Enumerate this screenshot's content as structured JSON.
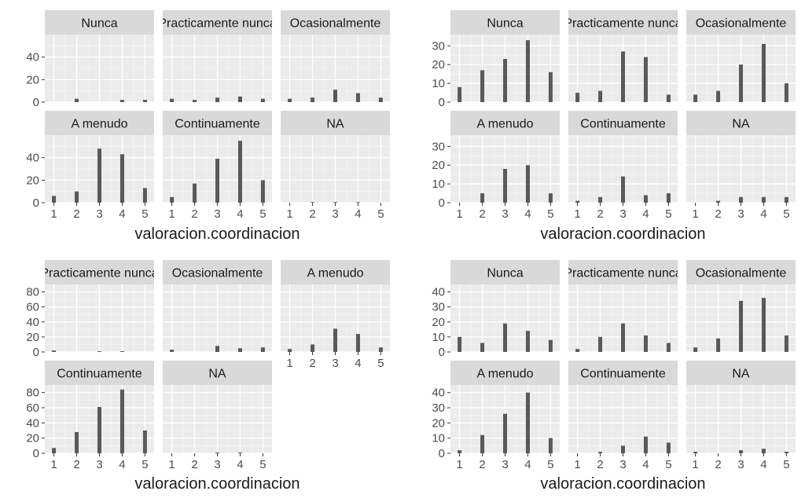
{
  "chart_data": [
    {
      "type": "bar",
      "xlabel": "valoracion.coordinacion",
      "x": [
        1,
        2,
        3,
        4,
        5
      ],
      "ylim": [
        0,
        60
      ],
      "yticks": [
        0,
        20,
        40
      ],
      "facets": [
        {
          "label": "Nunca",
          "values": [
            0,
            3,
            0,
            2,
            2
          ]
        },
        {
          "label": "Practicamente nunca",
          "values": [
            3,
            2,
            4,
            5,
            3
          ]
        },
        {
          "label": "Ocasionalmente",
          "values": [
            3,
            4,
            11,
            8,
            4
          ]
        },
        {
          "label": "A menudo",
          "values": [
            6,
            10,
            48,
            43,
            13
          ]
        },
        {
          "label": "Continuamente",
          "values": [
            5,
            17,
            39,
            55,
            20
          ]
        },
        {
          "label": "NA",
          "values": [
            0,
            0.5,
            0.5,
            0.5,
            0
          ]
        }
      ]
    },
    {
      "type": "bar",
      "xlabel": "valoracion.coordinacion",
      "x": [
        1,
        2,
        3,
        4,
        5
      ],
      "ylim": [
        0,
        36
      ],
      "yticks": [
        0,
        10,
        20,
        30
      ],
      "facets": [
        {
          "label": "Nunca",
          "values": [
            8,
            17,
            23,
            33,
            16
          ]
        },
        {
          "label": "Practicamente nunca",
          "values": [
            5,
            6,
            27,
            24,
            4
          ]
        },
        {
          "label": "Ocasionalmente",
          "values": [
            4,
            6,
            20,
            31,
            10
          ]
        },
        {
          "label": "A menudo",
          "values": [
            0,
            5,
            18,
            20,
            5
          ]
        },
        {
          "label": "Continuamente",
          "values": [
            1,
            3,
            14,
            4,
            5
          ]
        },
        {
          "label": "NA",
          "values": [
            0,
            1,
            3,
            3,
            3
          ]
        }
      ]
    },
    {
      "type": "bar",
      "xlabel": "valoracion.coordinacion",
      "x": [
        1,
        2,
        3,
        4,
        5
      ],
      "ylim": [
        0,
        90
      ],
      "yticks": [
        0,
        20,
        40,
        60,
        80
      ],
      "facets": [
        {
          "label": "Practicamente nunca",
          "values": [
            2,
            0,
            1,
            1,
            0
          ]
        },
        {
          "label": "Ocasionalmente",
          "values": [
            3,
            0,
            8,
            5,
            6
          ]
        },
        {
          "label": "A menudo",
          "values": [
            4,
            10,
            31,
            24,
            6
          ]
        },
        {
          "label": "Continuamente",
          "values": [
            7,
            28,
            61,
            84,
            30
          ]
        },
        {
          "label": "NA",
          "values": [
            0,
            0,
            1,
            1,
            0
          ]
        }
      ]
    },
    {
      "type": "bar",
      "xlabel": "valoracion.coordinacion",
      "x": [
        1,
        2,
        3,
        4,
        5
      ],
      "ylim": [
        0,
        45
      ],
      "yticks": [
        0,
        10,
        20,
        30,
        40
      ],
      "facets": [
        {
          "label": "Nunca",
          "values": [
            10,
            6,
            19,
            14,
            8
          ]
        },
        {
          "label": "Practicamente nunca",
          "values": [
            2,
            10,
            19,
            11,
            6
          ]
        },
        {
          "label": "Ocasionalmente",
          "values": [
            3,
            9,
            34,
            36,
            11
          ]
        },
        {
          "label": "A menudo",
          "values": [
            2,
            12,
            26,
            40,
            10
          ]
        },
        {
          "label": "Continuamente",
          "values": [
            0,
            1,
            5,
            11,
            7
          ]
        },
        {
          "label": "NA",
          "values": [
            1,
            0,
            2,
            3,
            1
          ]
        }
      ]
    }
  ]
}
